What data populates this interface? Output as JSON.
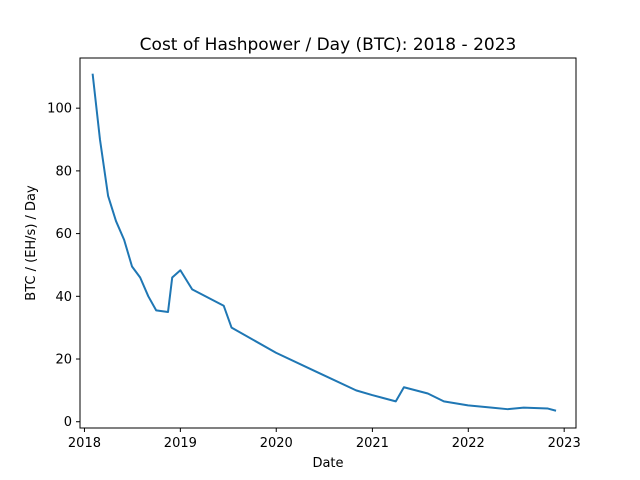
{
  "chart_data": {
    "type": "line",
    "title": "Cost of Hashpower / Day (BTC): 2018 - 2023",
    "xlabel": "Date",
    "ylabel": "BTC / (EH/s) / Day",
    "xlim": [
      "2017-12-15",
      "2023-02-15"
    ],
    "ylim": [
      -2,
      116
    ],
    "x_ticks": [
      "2018",
      "2019",
      "2020",
      "2021",
      "2022",
      "2023"
    ],
    "y_ticks": [
      0,
      20,
      40,
      60,
      80,
      100
    ],
    "grid": false,
    "line_color": "#1f77b4",
    "series": [
      {
        "x": [
          "2018-02-01",
          "2018-03-01",
          "2018-04-01",
          "2018-05-01",
          "2018-06-01",
          "2018-07-01",
          "2018-08-01",
          "2018-09-01",
          "2018-10-01",
          "2018-11-15",
          "2018-12-01",
          "2019-01-01",
          "2019-02-15",
          "2019-06-15",
          "2019-07-15",
          "2019-12-31",
          "2020-05-31",
          "2020-10-31",
          "2020-12-31",
          "2021-03-31",
          "2021-05-01",
          "2021-07-31",
          "2021-09-30",
          "2021-12-31",
          "2022-03-31",
          "2022-05-31",
          "2022-07-31",
          "2022-10-31",
          "2022-12-01"
        ],
        "values": [
          111,
          90,
          72,
          64,
          58,
          49.5,
          46,
          40,
          35.5,
          35,
          46,
          48.3,
          42.2,
          37,
          30,
          22,
          16,
          10,
          8.5,
          6.5,
          11,
          9,
          6.5,
          5.2,
          4.5,
          4,
          4.5,
          4.2,
          3.5
        ]
      }
    ]
  }
}
